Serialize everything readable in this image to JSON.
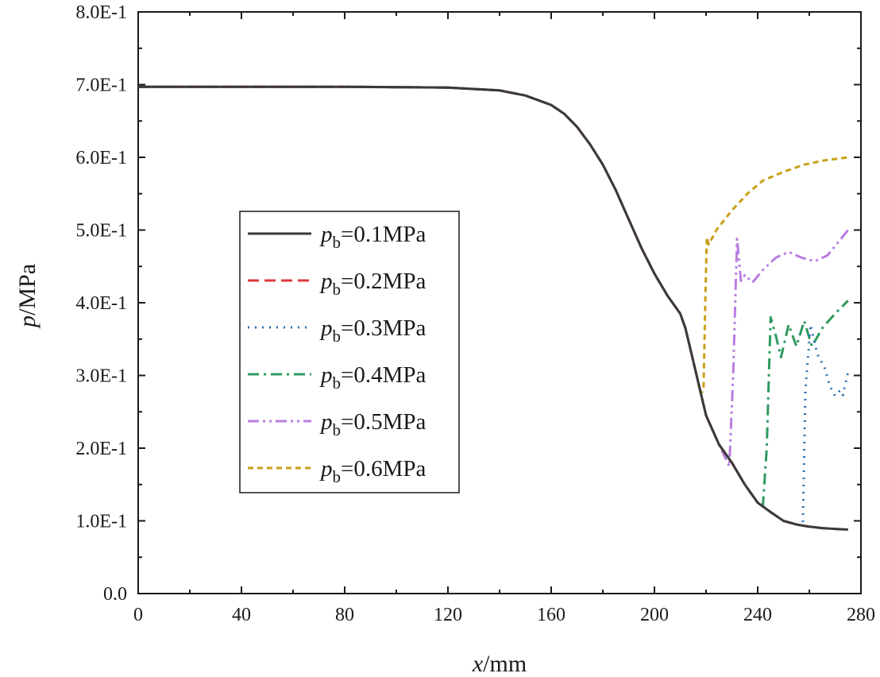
{
  "chart_data": {
    "type": "line",
    "title": "",
    "xlabel": {
      "var": "x",
      "unit": "/mm"
    },
    "ylabel": {
      "var": "p",
      "unit": "/MPa"
    },
    "xlim": [
      0,
      280
    ],
    "ylim": [
      0,
      0.8
    ],
    "x_ticks": [
      {
        "value": 0,
        "label": "0"
      },
      {
        "value": 40,
        "label": "40"
      },
      {
        "value": 80,
        "label": "80"
      },
      {
        "value": 120,
        "label": "120"
      },
      {
        "value": 160,
        "label": "160"
      },
      {
        "value": 200,
        "label": "200"
      },
      {
        "value": 240,
        "label": "240"
      },
      {
        "value": 280,
        "label": "280"
      }
    ],
    "y_ticks": [
      {
        "value": 0.0,
        "label": "0.0"
      },
      {
        "value": 0.1,
        "label": "1.0E-1"
      },
      {
        "value": 0.2,
        "label": "2.0E-1"
      },
      {
        "value": 0.3,
        "label": "3.0E-1"
      },
      {
        "value": 0.4,
        "label": "4.0E-1"
      },
      {
        "value": 0.5,
        "label": "5.0E-1"
      },
      {
        "value": 0.6,
        "label": "6.0E-1"
      },
      {
        "value": 0.7,
        "label": "7.0E-1"
      },
      {
        "value": 0.8,
        "label": "8.0E-1"
      }
    ],
    "grid": false,
    "legend_position": "center-left",
    "base_curve": {
      "x": [
        0,
        40,
        80,
        120,
        140,
        150,
        160,
        165,
        170,
        175,
        180,
        185,
        190,
        195,
        200,
        205,
        210,
        212,
        215,
        218,
        220,
        225,
        230,
        235,
        240,
        245,
        250,
        255,
        260,
        265,
        270,
        275
      ],
      "y": [
        0.697,
        0.697,
        0.697,
        0.696,
        0.692,
        0.685,
        0.672,
        0.66,
        0.642,
        0.618,
        0.59,
        0.555,
        0.515,
        0.475,
        0.44,
        0.41,
        0.385,
        0.365,
        0.32,
        0.275,
        0.245,
        0.205,
        0.18,
        0.15,
        0.125,
        0.112,
        0.1,
        0.095,
        0.092,
        0.09,
        0.089,
        0.088
      ]
    },
    "series": [
      {
        "name": "0.1MPa",
        "label_var": "p",
        "label_sub": "b",
        "label_value": "=0.1MPa",
        "color": "#3a3a3a",
        "dash": "solid",
        "shock_x": null,
        "post": []
      },
      {
        "name": "0.2MPa",
        "label_var": "p",
        "label_sub": "b",
        "label_value": "=0.2MPa",
        "color": "#e0383c",
        "dash": "dash",
        "shock_x": null,
        "post": []
      },
      {
        "name": "0.3MPa",
        "label_var": "p",
        "label_sub": "b",
        "label_value": "=0.3MPa",
        "color": "#2d6fb5",
        "dash": "dot",
        "shock_x": 257.5,
        "post": [
          [
            257.5,
            0.098
          ],
          [
            258.5,
            0.28
          ],
          [
            260.5,
            0.37
          ],
          [
            263,
            0.33
          ],
          [
            266,
            0.31
          ],
          [
            268,
            0.285
          ],
          [
            270,
            0.272
          ],
          [
            272,
            0.28
          ],
          [
            273,
            0.273
          ],
          [
            275,
            0.305
          ]
        ]
      },
      {
        "name": "0.4MPa",
        "label_var": "p",
        "label_sub": "b",
        "label_value": "=0.4MPa",
        "color": "#2e9a5f",
        "dash": "dashdot",
        "shock_x": 242,
        "post": [
          [
            242,
            0.12
          ],
          [
            243.5,
            0.2
          ],
          [
            245,
            0.38
          ],
          [
            247,
            0.355
          ],
          [
            249,
            0.325
          ],
          [
            252,
            0.37
          ],
          [
            255,
            0.34
          ],
          [
            258,
            0.375
          ],
          [
            261,
            0.34
          ],
          [
            265,
            0.365
          ],
          [
            270,
            0.385
          ],
          [
            275,
            0.403
          ]
        ]
      },
      {
        "name": "0.5MPa",
        "label_var": "p",
        "label_sub": "b",
        "label_value": "=0.5MPa",
        "color": "#b97ee0",
        "dash": "dashdotdot",
        "shock_x": 229,
        "post": [
          [
            229,
            0.175
          ],
          [
            230.5,
            0.3
          ],
          [
            232,
            0.488
          ],
          [
            233.5,
            0.43
          ],
          [
            235,
            0.438
          ],
          [
            238,
            0.428
          ],
          [
            242,
            0.445
          ],
          [
            247,
            0.462
          ],
          [
            252,
            0.47
          ],
          [
            257,
            0.462
          ],
          [
            262,
            0.457
          ],
          [
            267,
            0.465
          ],
          [
            275,
            0.5
          ]
        ]
      },
      {
        "name": "0.6MPa",
        "label_var": "p",
        "label_sub": "b",
        "label_value": "=0.6MPa",
        "color": "#c9a019",
        "dash": "shortdash",
        "shock_x": 219,
        "post": [
          [
            219,
            0.28
          ],
          [
            219.8,
            0.42
          ],
          [
            220.3,
            0.49
          ],
          [
            221,
            0.48
          ],
          [
            224,
            0.5
          ],
          [
            230,
            0.527
          ],
          [
            236,
            0.55
          ],
          [
            242,
            0.568
          ],
          [
            250,
            0.58
          ],
          [
            258,
            0.59
          ],
          [
            266,
            0.596
          ],
          [
            275,
            0.6
          ]
        ]
      }
    ]
  }
}
